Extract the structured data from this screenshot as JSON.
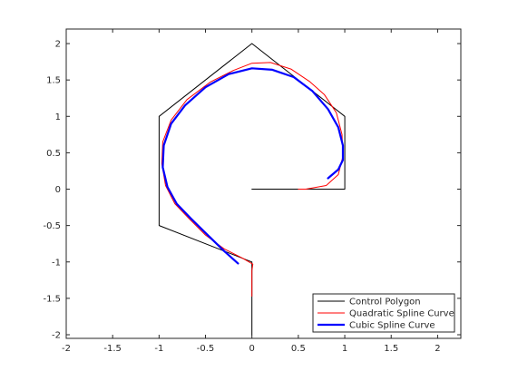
{
  "chart_data": {
    "type": "line",
    "title": "",
    "xlabel": "",
    "ylabel": "",
    "xlim": [
      -2,
      2.25
    ],
    "ylim": [
      -2.05,
      2.2
    ],
    "x_ticks": [
      -2,
      -1.5,
      -1,
      -0.5,
      0,
      0.5,
      1,
      1.5,
      2
    ],
    "y_ticks": [
      -2,
      -1.5,
      -1,
      -0.5,
      0,
      0.5,
      1,
      1.5,
      2
    ],
    "x_tick_labels": [
      "-2",
      "-1.5",
      "-1",
      "-0.5",
      "0",
      "0.5",
      "1",
      "1.5",
      "2"
    ],
    "y_tick_labels": [
      "-2",
      "-1.5",
      "-1",
      "-0.5",
      "0",
      "0.5",
      "1",
      "1.5",
      "2"
    ],
    "grid": false,
    "legend_position": "bottom-right",
    "series": [
      {
        "name": "Control Polygon",
        "color": "#000000",
        "width": 1,
        "points": [
          [
            0,
            -2
          ],
          [
            0,
            -1
          ],
          [
            -1,
            -0.5
          ],
          [
            -1,
            0
          ],
          [
            -1,
            1
          ],
          [
            0,
            2
          ],
          [
            1,
            1
          ],
          [
            1,
            0
          ],
          [
            0,
            0
          ]
        ]
      },
      {
        "name": "Quadratic Spline Curve",
        "color": "#ff0000",
        "width": 1,
        "points": [
          [
            0,
            -1.47
          ],
          [
            0,
            -1.3
          ],
          [
            0,
            -1.12
          ],
          [
            0.01,
            -1.03
          ],
          [
            -0.1,
            -0.95
          ],
          [
            -0.3,
            -0.82
          ],
          [
            -0.5,
            -0.63
          ],
          [
            -0.68,
            -0.4
          ],
          [
            -0.83,
            -0.2
          ],
          [
            -0.93,
            0.05
          ],
          [
            -0.97,
            0.35
          ],
          [
            -0.96,
            0.65
          ],
          [
            -0.87,
            0.95
          ],
          [
            -0.7,
            1.23
          ],
          [
            -0.45,
            1.47
          ],
          [
            -0.2,
            1.63
          ],
          [
            0,
            1.73
          ],
          [
            0.2,
            1.74
          ],
          [
            0.42,
            1.65
          ],
          [
            0.62,
            1.48
          ],
          [
            0.78,
            1.3
          ],
          [
            0.91,
            1.05
          ],
          [
            0.97,
            0.75
          ],
          [
            0.98,
            0.45
          ],
          [
            0.93,
            0.2
          ],
          [
            0.8,
            0.05
          ],
          [
            0.58,
            0
          ],
          [
            0.5,
            0
          ]
        ]
      },
      {
        "name": "Cubic Spline Curve",
        "color": "#0000ff",
        "width": 2.2,
        "points": [
          [
            -0.15,
            -1.02
          ],
          [
            -0.3,
            -0.85
          ],
          [
            -0.5,
            -0.6
          ],
          [
            -0.66,
            -0.4
          ],
          [
            -0.81,
            -0.2
          ],
          [
            -0.91,
            0.03
          ],
          [
            -0.96,
            0.3
          ],
          [
            -0.95,
            0.6
          ],
          [
            -0.87,
            0.9
          ],
          [
            -0.72,
            1.15
          ],
          [
            -0.5,
            1.4
          ],
          [
            -0.25,
            1.58
          ],
          [
            0,
            1.66
          ],
          [
            0.22,
            1.64
          ],
          [
            0.45,
            1.54
          ],
          [
            0.65,
            1.35
          ],
          [
            0.82,
            1.1
          ],
          [
            0.93,
            0.85
          ],
          [
            0.98,
            0.6
          ],
          [
            0.98,
            0.4
          ],
          [
            0.93,
            0.27
          ],
          [
            0.82,
            0.15
          ]
        ]
      }
    ]
  }
}
